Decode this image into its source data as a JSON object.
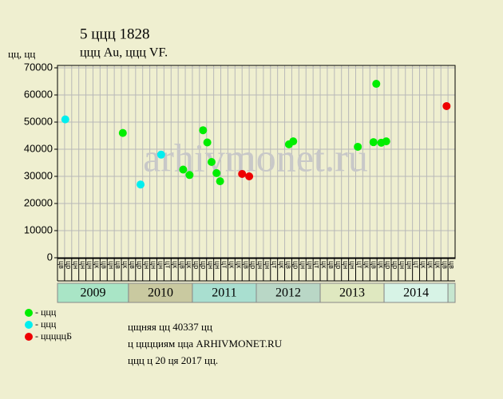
{
  "chart_data": {
    "type": "scatter",
    "title": "5 ццц 1828",
    "subtitle": "ццц Au, ццц VF.",
    "y_label": "цц, цц",
    "watermark": "arhivmonet.ru",
    "categories": [
      "цв",
      "цр",
      "цн",
      "цн",
      "цн",
      "цк",
      "цв",
      "цн",
      "цв",
      "цк",
      "цв",
      "цр",
      "цн",
      "цн",
      "цн",
      "цт",
      "цк",
      "цв",
      "цк",
      "цр",
      "цр",
      "цн",
      "цн",
      "цт",
      "цк",
      "цк",
      "цв",
      "цр",
      "цн",
      "цн",
      "цт",
      "цк",
      "цв",
      "цр",
      "цн",
      "цн",
      "цт",
      "цк",
      "цв",
      "цр",
      "цн",
      "цн",
      "цт",
      "цк",
      "цв",
      "цк",
      "цр",
      "цр",
      "цн",
      "цн",
      "цт",
      "цк",
      "цк",
      "цк",
      "цв",
      "цв"
    ],
    "years": [
      {
        "label": "2009",
        "months": 10,
        "color": "#a9e5c6"
      },
      {
        "label": "2010",
        "months": 9,
        "color": "#c9c9a0"
      },
      {
        "label": "2011",
        "months": 9,
        "color": "#a9dfd0"
      },
      {
        "label": "2012",
        "months": 9,
        "color": "#b9d7c6"
      },
      {
        "label": "2013",
        "months": 9,
        "color": "#dfe8c0"
      },
      {
        "label": "2014",
        "months": 9,
        "color": "#d7f3e6"
      },
      {
        "label": "",
        "months": 1,
        "color": "#c6e6cf"
      }
    ],
    "xlim": [
      0,
      56
    ],
    "ylim": [
      0,
      70000
    ],
    "yticks": [
      0,
      10000,
      20000,
      30000,
      40000,
      50000,
      60000,
      70000
    ],
    "grid": true,
    "series": [
      {
        "name": "- ццц",
        "color": "#00ee00",
        "x": [
          9.2,
          17.7,
          18.6,
          20.5,
          21.1,
          21.7,
          22.4,
          22.9,
          32.6,
          33.2,
          42.3,
          44.5,
          44.9,
          45.6,
          46.3
        ],
        "values": [
          46000,
          32500,
          30500,
          47000,
          42500,
          35300,
          31200,
          28200,
          41800,
          42900,
          40900,
          42600,
          64100,
          42400,
          42900
        ]
      },
      {
        "name": "- ццц",
        "color": "#00eeee",
        "x": [
          1.1,
          11.7,
          14.6
        ],
        "values": [
          51000,
          27000,
          38000
        ]
      },
      {
        "name": "- цццццБ",
        "color": "#ee0000",
        "x": [
          26,
          27,
          54.8
        ],
        "values": [
          30900,
          30000,
          55900
        ]
      }
    ],
    "footer": [
      "цщняя цц 40337 цц",
      "ц цццциям цца ARHIVMONET.RU",
      "ццц ц 20 ця 2017 цц."
    ]
  }
}
